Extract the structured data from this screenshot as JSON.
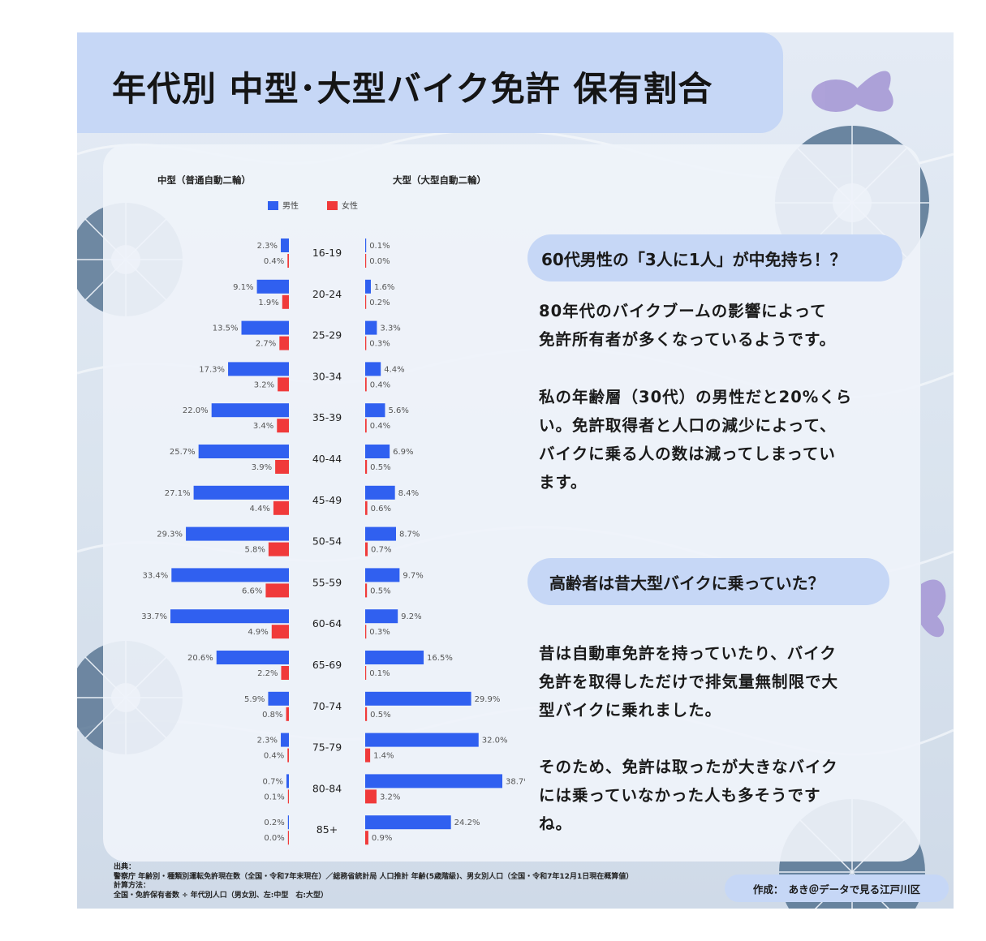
{
  "title": "年代別 中型･大型バイク免許 保有割合",
  "chart_data": {
    "type": "bar",
    "subtype": "horizontal-bar-pair",
    "unit": "%",
    "categories": [
      "16-19",
      "20-24",
      "25-29",
      "30-34",
      "35-39",
      "40-44",
      "45-49",
      "50-54",
      "55-59",
      "60-64",
      "65-69",
      "70-74",
      "75-79",
      "80-84",
      "85+"
    ],
    "legend": [
      "男性",
      "女性"
    ],
    "legend_placement": "top-left",
    "grid": false,
    "colors": {
      "male": "#3060f0",
      "female": "#f03a3a"
    },
    "panels": [
      {
        "title": "中型（普通自動二輪）",
        "direction": "left",
        "series": [
          {
            "name": "男性",
            "values": [
              2.3,
              9.1,
              13.5,
              17.3,
              22.0,
              25.7,
              27.1,
              29.3,
              33.4,
              33.7,
              20.6,
              5.9,
              2.3,
              0.7,
              0.2
            ]
          },
          {
            "name": "女性",
            "values": [
              0.4,
              1.9,
              2.7,
              3.2,
              3.4,
              3.9,
              4.4,
              5.8,
              6.6,
              4.9,
              2.2,
              0.8,
              0.4,
              0.1,
              0.0
            ]
          }
        ]
      },
      {
        "title": "大型（大型自動二輪）",
        "direction": "right",
        "series": [
          {
            "name": "男性",
            "values": [
              0.1,
              1.6,
              3.3,
              4.4,
              5.6,
              6.9,
              8.4,
              8.7,
              9.7,
              9.2,
              16.5,
              29.9,
              32.0,
              38.7,
              24.2
            ]
          },
          {
            "name": "女性",
            "values": [
              0.0,
              0.2,
              0.3,
              0.4,
              0.4,
              0.5,
              0.6,
              0.7,
              0.5,
              0.3,
              0.1,
              0.5,
              1.4,
              3.2,
              0.9
            ]
          }
        ]
      }
    ]
  },
  "callout_1": "60代男性の「3人に1人」が中免持ち！？",
  "paragraph_1": "80年代のバイクブームの影響によって\n免許所有者が多くなっているようです。",
  "paragraph_2": "私の年齢層（30代）の男性だと20%くら\nい。免許取得者と人口の減少によって、\nバイクに乗る人の数は減ってしまってい\nます。",
  "callout_2": "高齢者は昔大型バイクに乗っていた？",
  "paragraph_3": "昔は自動車免許を持っていたり、バイク\n免許を取得しただけで排気量無制限で大\n型バイクに乗れました。",
  "paragraph_4": "そのため、免許は取ったが大きなバイク\nには乗っていなかった人も多そうです\nね。",
  "source": {
    "heading": "出典：",
    "line_1": "警察庁 年齢別・種類別運転免許現在数（全国・令和7年末現在）／総務省統計局 人口推計 年齢(5歳階級)、男女別人口（全国・令和7年12月1日現在概算値）",
    "method_heading": "計算方法：",
    "method": "全国・免許保有者数 ÷ 年代別人口（男女別、左:中型　右:大型）"
  },
  "author": "作成：　あき＠データで見る江戸川区"
}
